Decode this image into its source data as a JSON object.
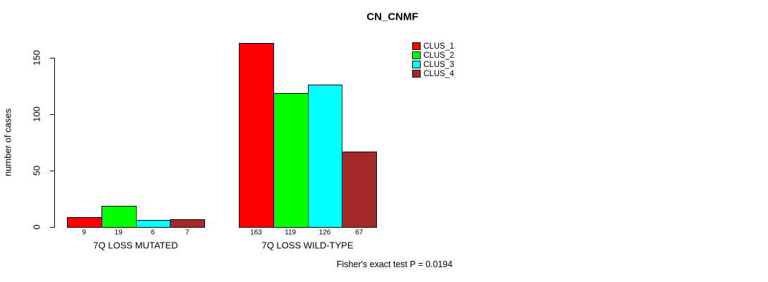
{
  "chart_data": {
    "type": "bar",
    "title": "CN_CNMF",
    "ylabel": "number of cases",
    "xlabel": "",
    "annotation": "Fisher's exact test P = 0.0194",
    "categories": [
      "7Q LOSS MUTATED",
      "7Q LOSS WILD-TYPE"
    ],
    "series": [
      {
        "name": "CLUS_1",
        "color": "#ff0000",
        "values": [
          9,
          163
        ]
      },
      {
        "name": "CLUS_2",
        "color": "#00ff00",
        "values": [
          19,
          119
        ]
      },
      {
        "name": "CLUS_3",
        "color": "#00ffff",
        "values": [
          6,
          126
        ]
      },
      {
        "name": "CLUS_4",
        "color": "#a52a2a",
        "values": [
          7,
          67
        ]
      }
    ],
    "yticks": [
      0,
      50,
      100,
      150
    ],
    "ylim": [
      0,
      165
    ],
    "grid": false,
    "show_value_labels": true,
    "legend_position": "top-right",
    "axis_color": "#000000",
    "background_color": "#ffffff"
  }
}
